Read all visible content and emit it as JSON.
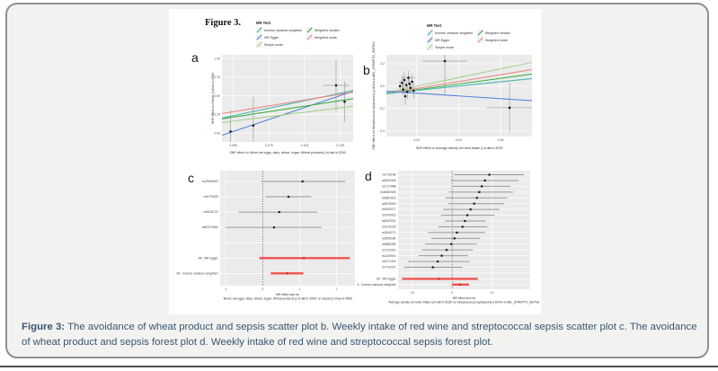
{
  "figure": {
    "title": "Figure 3."
  },
  "caption": {
    "label": "Figure 3:",
    "text": "The avoidance of wheat product and sepsis scatter plot b. Weekly intake of red wine and streptococcal sepsis scatter plot c. The avoidance of wheat product and sepsis forest plot d. Weekly intake of red wine and streptococcal sepsis forest plot."
  },
  "legend": {
    "title": "MR Test",
    "items": [
      {
        "label": "Inverse variance weighted",
        "color": "#49b8b0"
      },
      {
        "label": "MR Egger",
        "color": "#5585d6"
      },
      {
        "label": "Simple mode",
        "color": "#a8d08d"
      },
      {
        "label": "Weighted median",
        "color": "#3fae49"
      },
      {
        "label": "Weighted mode",
        "color": "#e98b85"
      }
    ]
  },
  "colors": {
    "plot_bg": "#ebebeb",
    "grid": "#ffffff",
    "error_bar": "#a0a0a0",
    "point": "#1a1a1a",
    "forest_ci": "#9a9a9a",
    "forest_red_ci": "#ef5350",
    "forest_red_point": "#c62828",
    "caption_text": "#3b566e"
  },
  "chart_data": [
    {
      "id": "a",
      "type": "scatter",
      "panel_label": "a",
      "xlabel": "SNP effect on Never eat eggs, dairy, wheat, sugar: Wheat products || id:ukb-b-2099",
      "ylabel": "SNP effect on Sepsis || id:ieu-b-4980",
      "xlim": [
        0.042,
        0.134
      ],
      "ylim": [
        -0.12,
        1.05
      ],
      "xticks": [
        0.05,
        0.075,
        0.1,
        0.125
      ],
      "xtick_labels": [
        "0.050",
        "0.075",
        "0.100",
        "0.125"
      ],
      "yticks": [
        1.0,
        0.75,
        0.5,
        0.25,
        0.0
      ],
      "ytick_labels": [
        "1.00",
        "0.75",
        "0.50",
        "0.25",
        "0.00"
      ],
      "points": [
        {
          "x": 0.048,
          "y": 0.02,
          "yerr": 0.28
        },
        {
          "x": 0.064,
          "y": 0.1,
          "yerr": 0.38
        },
        {
          "x": 0.122,
          "y": 0.64,
          "yerr": 0.34,
          "xerr": 0.009
        },
        {
          "x": 0.128,
          "y": 0.42,
          "yerr": 0.27
        }
      ],
      "lines": [
        {
          "name": "MR Egger",
          "color": "#5585d6",
          "y0": -0.03,
          "y1": 0.56
        },
        {
          "name": "Inverse variance weighted",
          "color": "#49b8b0",
          "y0": 0.2,
          "y1": 0.57
        },
        {
          "name": "Weighted mode",
          "color": "#e98b85",
          "y0": 0.26,
          "y1": 0.55
        },
        {
          "name": "Weighted median",
          "color": "#3fae49",
          "y0": 0.19,
          "y1": 0.46
        },
        {
          "name": "Simple mode",
          "color": "#a8d08d",
          "y0": 0.14,
          "y1": 0.36
        }
      ]
    },
    {
      "id": "b",
      "type": "scatter",
      "panel_label": "b",
      "xlabel": "SNP effect on Average weekly red wine intake || id:ukb-b-5239",
      "ylabel": "SNP effect on Streptococcal septicaemia || id:finn-b-AB1_STREPTO_SEPSIS",
      "xlim": [
        0.0055,
        0.075
      ],
      "ylim": [
        -0.45,
        0.28
      ],
      "xticks": [
        0.02,
        0.04,
        0.06
      ],
      "xtick_labels": [
        "0.02",
        "0.04",
        "0.06"
      ],
      "yticks": [
        0.2,
        0.0,
        -0.2,
        -0.4
      ],
      "ytick_labels": [
        "0.2",
        "0.0",
        "-0.2",
        "-0.4"
      ],
      "points": [
        {
          "x": 0.012,
          "y": 0.0,
          "yerr": 0.05
        },
        {
          "x": 0.013,
          "y": 0.03,
          "yerr": 0.06
        },
        {
          "x": 0.0135,
          "y": -0.03,
          "yerr": 0.05
        },
        {
          "x": 0.014,
          "y": 0.055,
          "yerr": 0.07
        },
        {
          "x": 0.0145,
          "y": -0.09,
          "yerr": 0.08
        },
        {
          "x": 0.015,
          "y": 0.01,
          "yerr": 0.05
        },
        {
          "x": 0.0155,
          "y": -0.05,
          "yerr": 0.06
        },
        {
          "x": 0.016,
          "y": 0.075,
          "yerr": 0.06,
          "xerr": 0.003
        },
        {
          "x": 0.0165,
          "y": 0.02,
          "yerr": 0.05
        },
        {
          "x": 0.017,
          "y": -0.015,
          "yerr": 0.05
        },
        {
          "x": 0.0178,
          "y": 0.04,
          "yerr": 0.06
        },
        {
          "x": 0.0185,
          "y": -0.04,
          "yerr": 0.07
        },
        {
          "x": 0.0334,
          "y": 0.224,
          "yerr": 0.3,
          "xerr": 0.0107
        },
        {
          "x": 0.0643,
          "y": -0.193,
          "yerr": 0.22,
          "xerr": 0.011
        }
      ],
      "lines": [
        {
          "name": "Simple mode",
          "color": "#a8d08d",
          "y0": -0.057,
          "y1": 0.212
        },
        {
          "name": "Weighted mode",
          "color": "#e98b85",
          "y0": -0.065,
          "y1": 0.148
        },
        {
          "name": "Weighted median",
          "color": "#3fae49",
          "y0": -0.069,
          "y1": 0.108
        },
        {
          "name": "Inverse variance weighted",
          "color": "#49b8b0",
          "y0": -0.065,
          "y1": 0.068
        },
        {
          "name": "MR Egger",
          "color": "#5585d6",
          "y0": -0.045,
          "y1": -0.13
        }
      ]
    },
    {
      "id": "c",
      "type": "forest",
      "panel_label": "c",
      "xlabel_line1": "MR effect size for",
      "xlabel_line2": "'Never eat eggs, dairy, wheat, sugar: Wheat products || id:ukb-b-2099' on Sepsis || id:ieu-b-4980",
      "xlim": [
        -1.15,
        2.5
      ],
      "xticks": [
        -1,
        0,
        1,
        2
      ],
      "xtick_labels": [
        "-1",
        "0",
        "1",
        "2"
      ],
      "rows": [
        {
          "label": "rs12566063",
          "center": 1.08,
          "lo": -0.05,
          "hi": 2.24
        },
        {
          "label": "rs9275425",
          "center": 0.7,
          "lo": 0.07,
          "hi": 1.32
        },
        {
          "label": "rs4916723",
          "center": 0.45,
          "lo": -0.65,
          "hi": 1.48
        },
        {
          "label": "rs62374064",
          "center": 0.31,
          "lo": -1.01,
          "hi": 1.6
        },
        {
          "sep": true
        },
        {
          "label": "All - MR Egger",
          "center": 1.12,
          "lo": -0.09,
          "hi": 2.36,
          "red": true
        },
        {
          "label": "All - Inverse variance weighted",
          "center": 0.67,
          "lo": 0.22,
          "hi": 1.1,
          "red": true
        }
      ]
    },
    {
      "id": "d",
      "type": "forest",
      "panel_label": "d",
      "xlabel_line1": "MR effect size for",
      "xlabel_line2": "'Average weekly red wine intake || id:ukb-b-5239' on Streptococcal septicaemia || id:finn-b-AB1_STREPTO_SEPSIS",
      "xlim": [
        -13.5,
        19.5
      ],
      "xticks": [
        -10,
        0,
        10
      ],
      "xtick_labels": [
        "-10",
        "0",
        "10"
      ],
      "rows": [
        {
          "label": "rs1791148",
          "center": 9.3,
          "lo": 0.5,
          "hi": 18.0
        },
        {
          "label": "rs9420318",
          "center": 8.2,
          "lo": -0.3,
          "hi": 16.6
        },
        {
          "label": "rs1717988",
          "center": 7.4,
          "lo": 0.2,
          "hi": 14.6
        },
        {
          "label": "rs34560905",
          "center": 6.8,
          "lo": -0.8,
          "hi": 15.2
        },
        {
          "label": "rs6887815",
          "center": 6.2,
          "lo": -1.6,
          "hi": 13.8
        },
        {
          "label": "rs5675903",
          "center": 5.5,
          "lo": -1.0,
          "hi": 13.0
        },
        {
          "label": "rs5440077",
          "center": 4.6,
          "lo": -2.2,
          "hi": 11.8
        },
        {
          "label": "rs1042916",
          "center": 3.8,
          "lo": -2.8,
          "hi": 10.6
        },
        {
          "label": "rs6057631",
          "center": 3.2,
          "lo": -1.8,
          "hi": 8.4
        },
        {
          "label": "rs1014229",
          "center": 2.6,
          "lo": -3.4,
          "hi": 8.8
        },
        {
          "label": "rs3904271",
          "center": 1.2,
          "lo": -6.0,
          "hi": 8.2
        },
        {
          "label": "rs3508184",
          "center": 0.6,
          "lo": -5.2,
          "hi": 7.0
        },
        {
          "label": "rs9880280",
          "center": -0.2,
          "lo": -6.8,
          "hi": 6.2
        },
        {
          "label": "rs7129301",
          "center": -1.4,
          "lo": -7.6,
          "hi": 5.2
        },
        {
          "label": "rs1420901",
          "center": -2.6,
          "lo": -8.4,
          "hi": 4.0
        },
        {
          "label": "rs9171416",
          "center": -3.6,
          "lo": -11.0,
          "hi": 4.4
        },
        {
          "label": "rs7714167",
          "center": -4.8,
          "lo": -12.0,
          "hi": 2.6
        },
        {
          "sep": true
        },
        {
          "label": "All - MR Egger",
          "center": -3.3,
          "lo": -12.5,
          "hi": 6.4,
          "red": true
        },
        {
          "label": "All - Inverse variance weighted",
          "center": 1.9,
          "lo": 0.0,
          "hi": 4.2,
          "red": true
        }
      ]
    }
  ]
}
